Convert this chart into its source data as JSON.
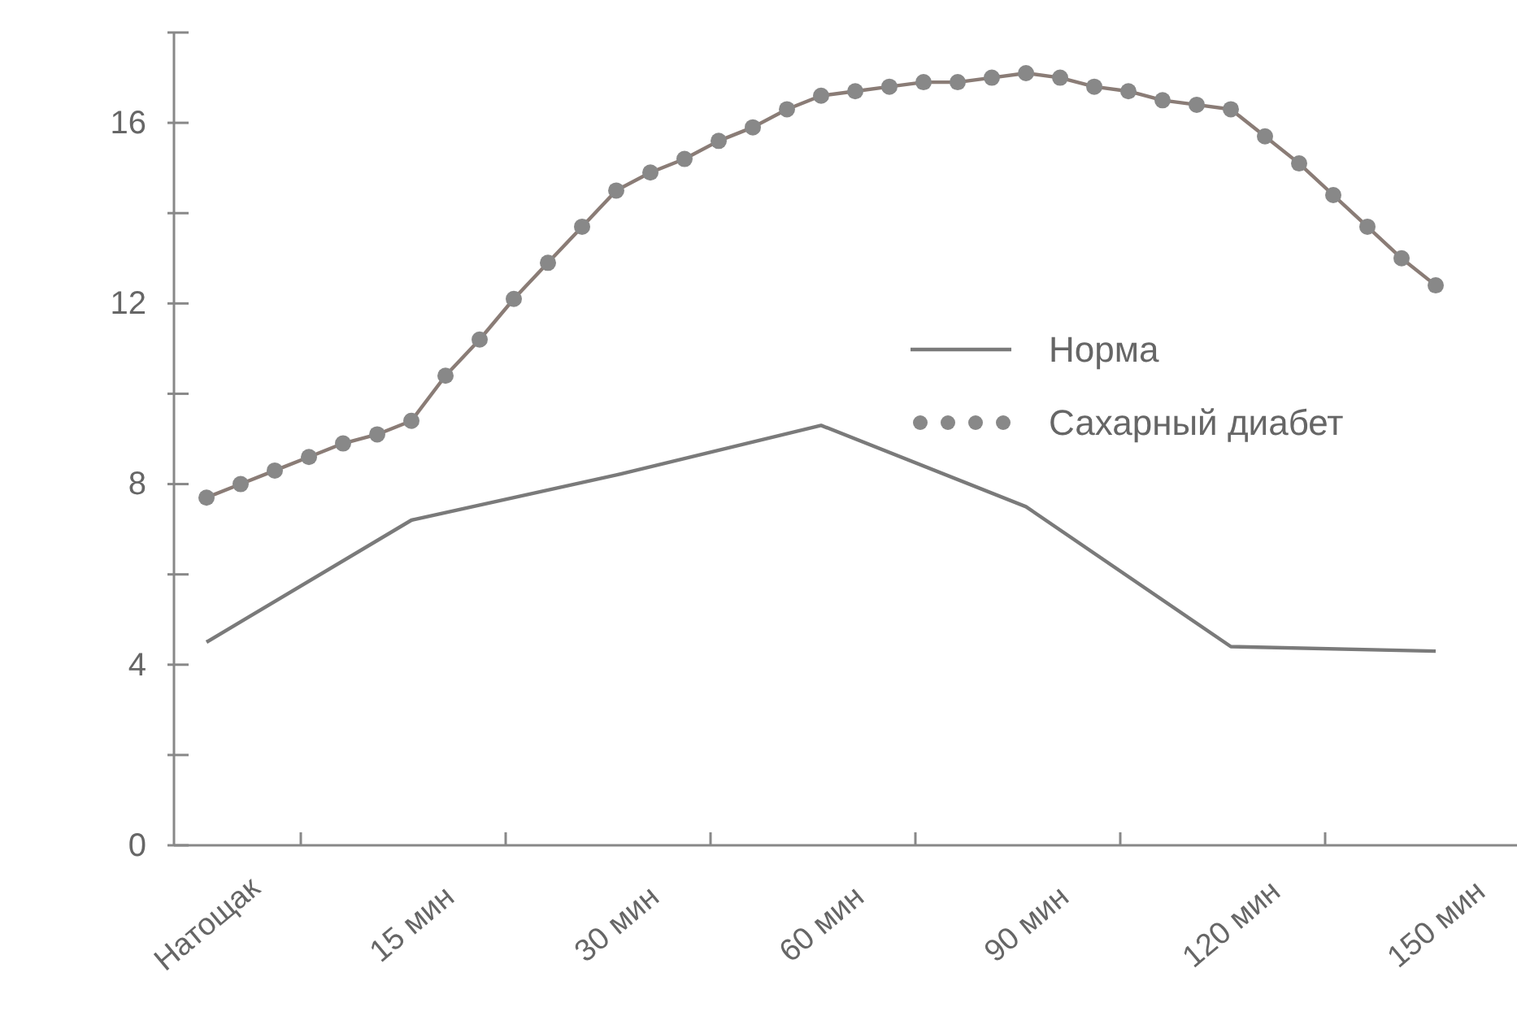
{
  "chart_data": {
    "type": "line",
    "categories": [
      "Натощак",
      null,
      null,
      null,
      null,
      null,
      "15 мин",
      null,
      null,
      null,
      null,
      null,
      "30 мин",
      null,
      null,
      null,
      null,
      null,
      "60 мин",
      null,
      null,
      null,
      null,
      null,
      "90 мин",
      null,
      null,
      null,
      null,
      null,
      "120 мин",
      null,
      null,
      null,
      null,
      null,
      "150 мин"
    ],
    "ylim": [
      0,
      18
    ],
    "yticks": [
      0,
      {
        "value": 2,
        "label": null
      },
      4,
      {
        "value": 6,
        "label": null
      },
      8,
      {
        "value": 10,
        "label": null
      },
      12,
      {
        "value": 14,
        "label": null
      },
      16,
      {
        "value": 18,
        "label": null
      }
    ],
    "legend": "right",
    "series": [
      {
        "name": "Норма",
        "color": "#7a7a7a",
        "marker": "none",
        "values": [
          4.5,
          null,
          null,
          null,
          null,
          null,
          7.2,
          null,
          null,
          null,
          null,
          null,
          8.2,
          null,
          null,
          null,
          null,
          null,
          9.3,
          null,
          null,
          null,
          null,
          null,
          7.5,
          null,
          null,
          null,
          null,
          null,
          4.4,
          null,
          null,
          null,
          null,
          null,
          4.3
        ]
      },
      {
        "name": "Сахарный диабет",
        "color": "#8a7c76",
        "marker": "circle",
        "values": [
          7.7,
          8.0,
          8.3,
          8.6,
          8.9,
          9.1,
          9.4,
          10.4,
          11.2,
          12.1,
          12.9,
          13.7,
          14.5,
          14.9,
          15.2,
          15.6,
          15.9,
          16.3,
          16.6,
          16.7,
          16.8,
          16.9,
          16.9,
          17.0,
          17.1,
          17.0,
          16.8,
          16.7,
          16.5,
          16.4,
          16.3,
          15.7,
          15.1,
          14.4,
          13.7,
          13.0,
          12.4
        ]
      }
    ]
  }
}
